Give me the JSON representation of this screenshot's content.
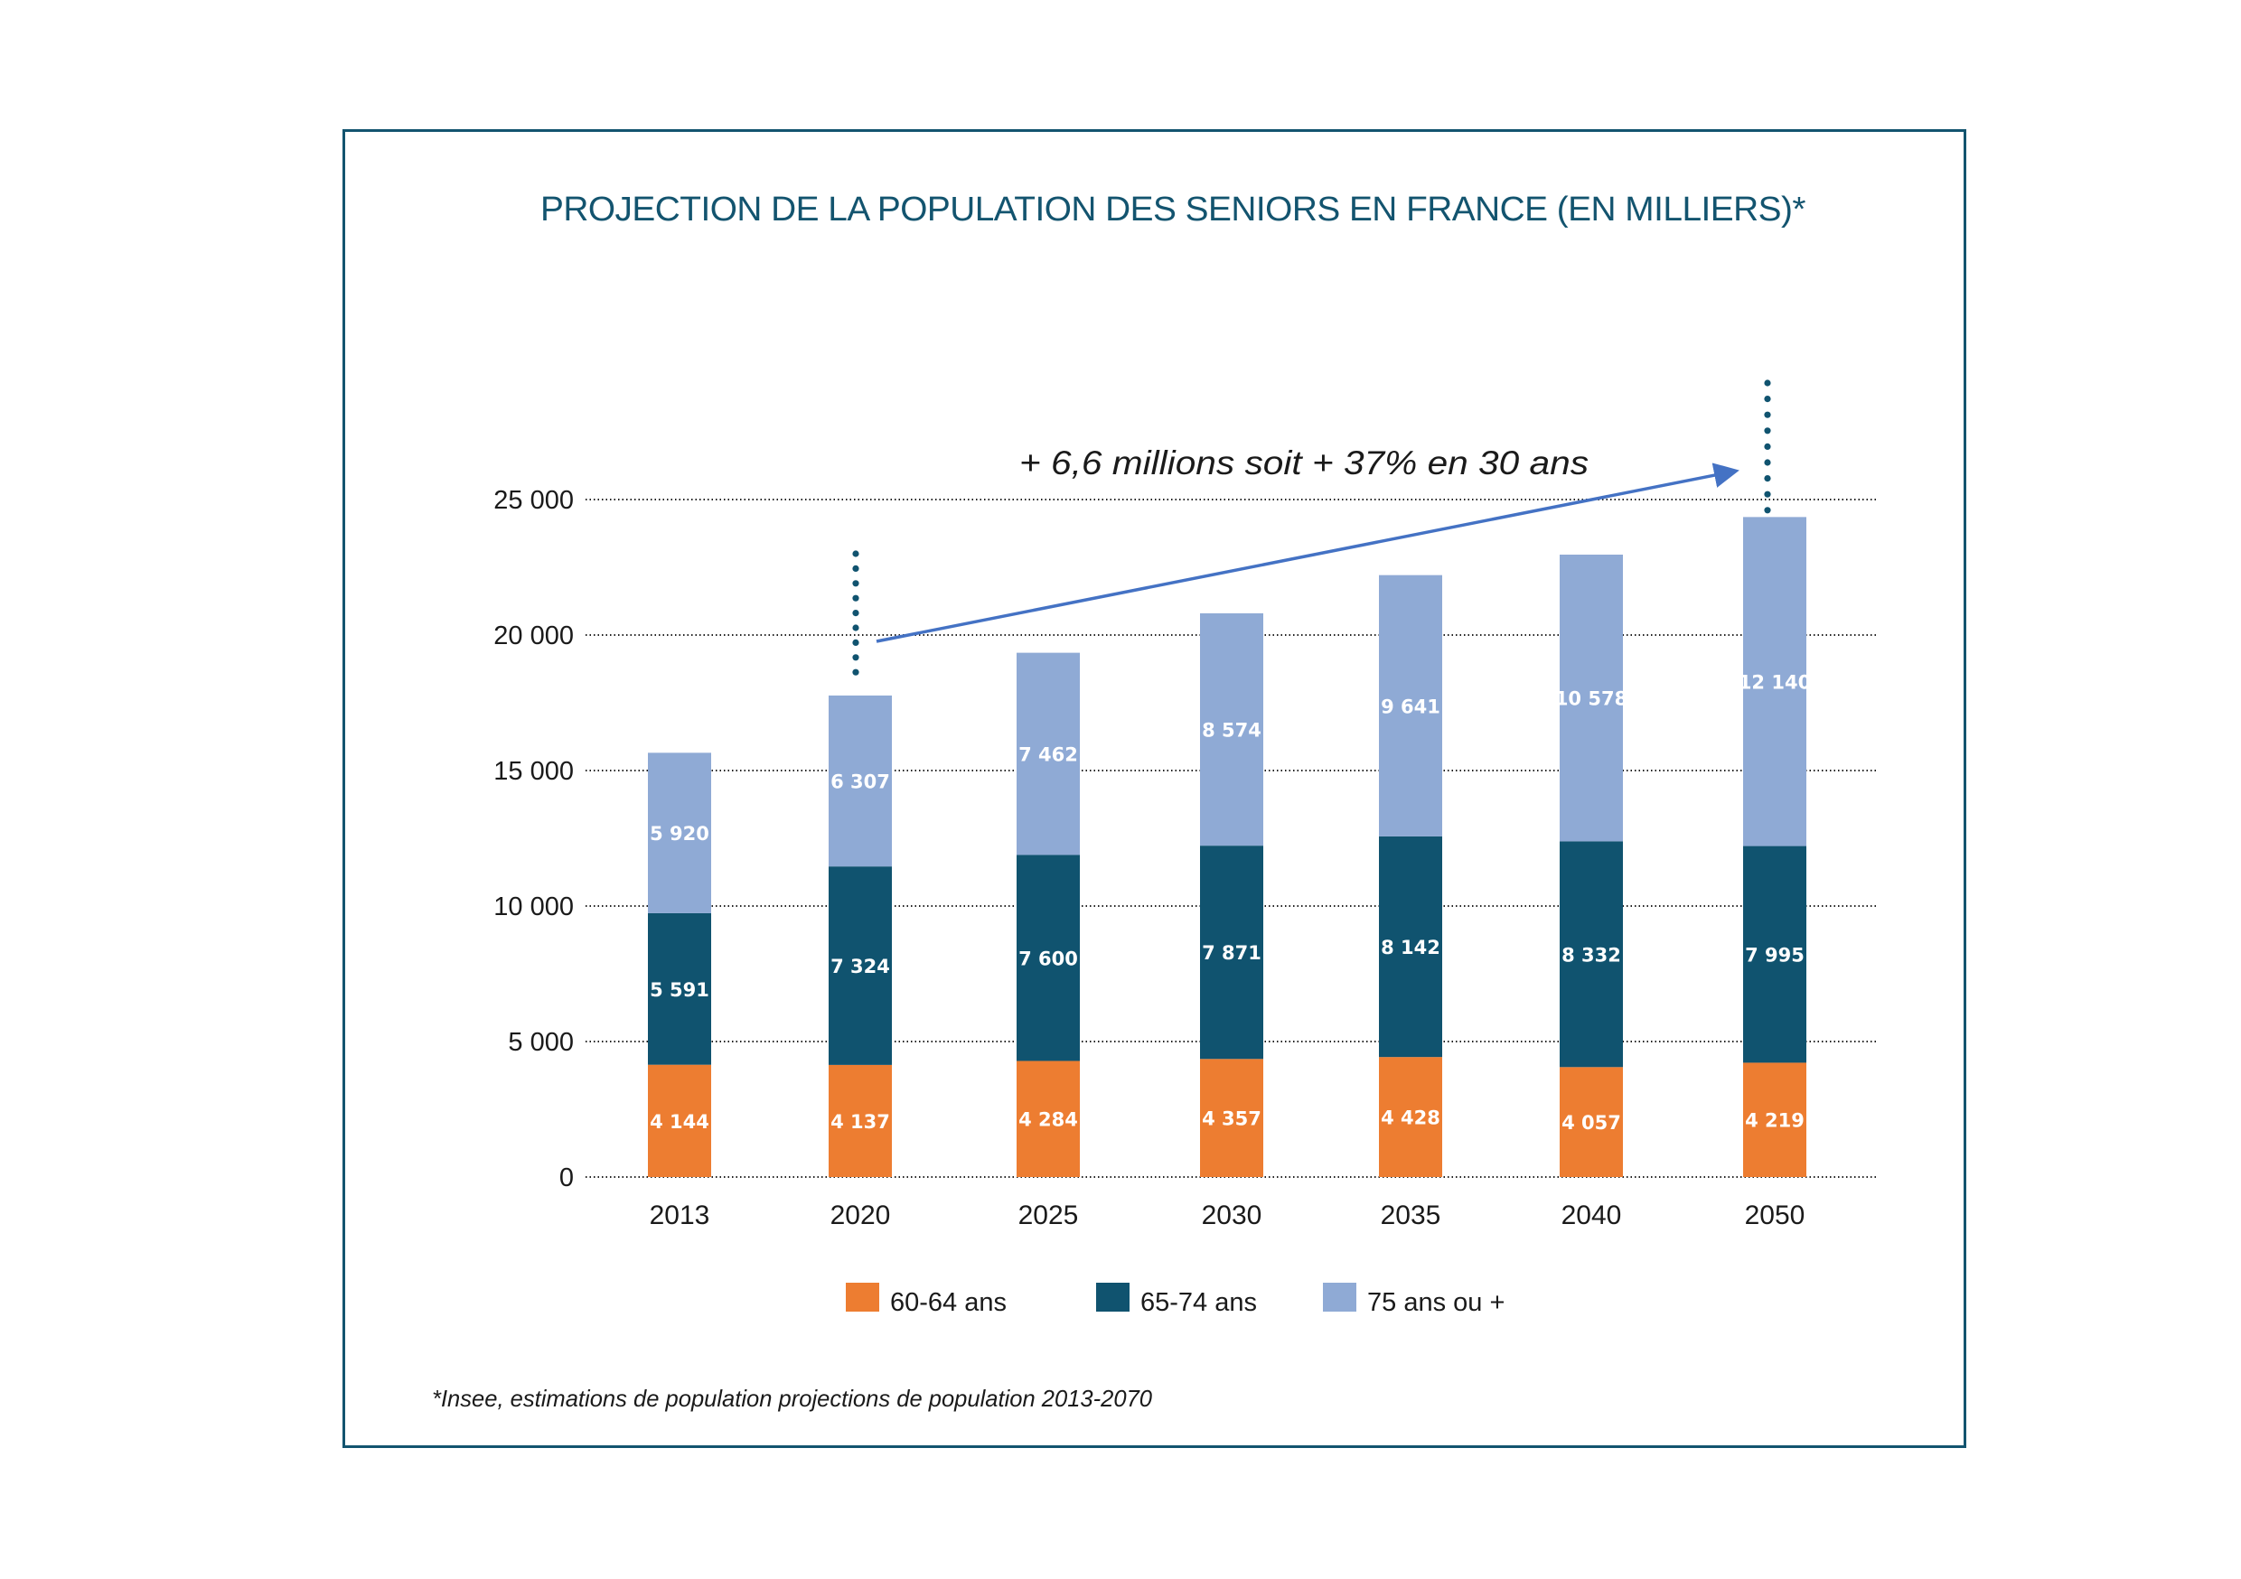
{
  "chart_data": {
    "type": "bar",
    "stacked": true,
    "title": "PROJECTION DE LA POPULATION DES SENIORS EN FRANCE (EN MILLIERS)*",
    "xlabel": "",
    "ylabel": "",
    "categories": [
      "2013",
      "2020",
      "2025",
      "2030",
      "2035",
      "2040",
      "2050"
    ],
    "series": [
      {
        "name": "60-64 ans",
        "color": "#ed7d31",
        "values": [
          4144,
          4137,
          4284,
          4357,
          4428,
          4057,
          4219
        ],
        "labels": [
          "4 144",
          "4 137",
          "4 284",
          "4 357",
          "4 428",
          "4 057",
          "4 219"
        ]
      },
      {
        "name": "65-74 ans",
        "color": "#10536f",
        "values": [
          5591,
          7324,
          7600,
          7871,
          8142,
          8332,
          7995
        ],
        "labels": [
          "5 591",
          "7 324",
          "7 600",
          "7 871",
          "8 142",
          "8 332",
          "7 995"
        ]
      },
      {
        "name": "75 ans ou +",
        "color": "#8faad5",
        "values": [
          5920,
          6307,
          7462,
          8574,
          9641,
          10578,
          12140
        ],
        "labels": [
          "5 920",
          "6 307",
          "7 462",
          "8 574",
          "9 641",
          "10 578",
          "12 140"
        ]
      }
    ],
    "ylim": [
      0,
      25000
    ],
    "yticks": [
      0,
      5000,
      10000,
      15000,
      20000,
      25000
    ],
    "ytick_labels": [
      "0",
      "5 000",
      "10 000",
      "15 000",
      "20 000",
      "25 000"
    ],
    "grid": true,
    "grid_style": "dotted",
    "legend_position": "bottom",
    "annotation": {
      "text": "+ 6,6 millions soit + 37% en 30 ans",
      "arrow_from_category": "2020",
      "arrow_to_category": "2050",
      "arrow_color": "#4472c4",
      "marker_color": "#10536f"
    },
    "footnote": "*Insee, estimations de population projections de population 2013-2070"
  },
  "colors": {
    "frame": "#13546f",
    "title": "#13546f"
  }
}
